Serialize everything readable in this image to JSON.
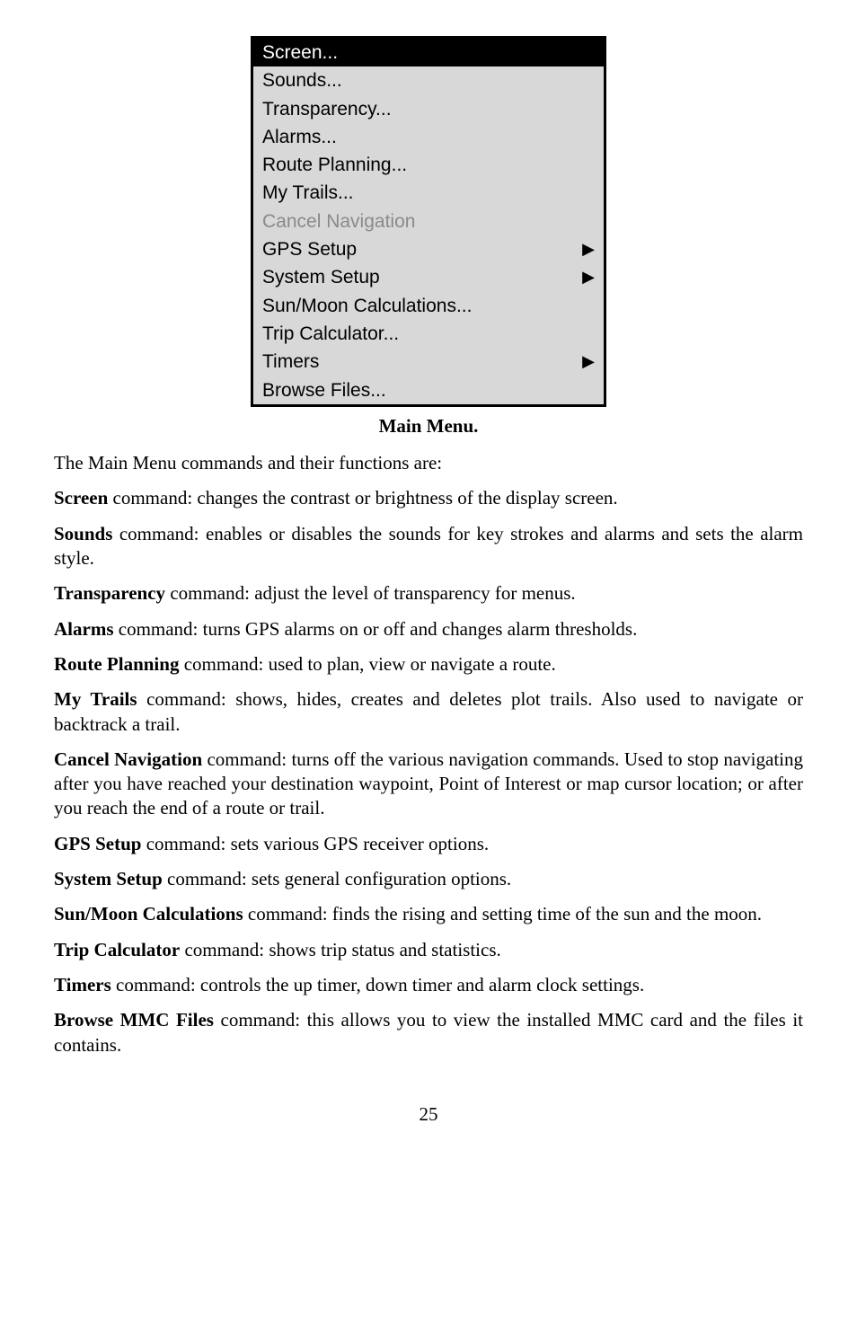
{
  "menu": {
    "box_background": "#d8d8d8",
    "border_color": "#000000",
    "font_family": "Arial, Helvetica, sans-serif",
    "font_size_pt": 16,
    "items": [
      {
        "label": "Screen...",
        "selected": true,
        "disabled": false,
        "has_submenu": false
      },
      {
        "label": "Sounds...",
        "selected": false,
        "disabled": false,
        "has_submenu": false
      },
      {
        "label": "Transparency...",
        "selected": false,
        "disabled": false,
        "has_submenu": false
      },
      {
        "label": "Alarms...",
        "selected": false,
        "disabled": false,
        "has_submenu": false
      },
      {
        "label": "Route Planning...",
        "selected": false,
        "disabled": false,
        "has_submenu": false
      },
      {
        "label": "My Trails...",
        "selected": false,
        "disabled": false,
        "has_submenu": false
      },
      {
        "label": "Cancel Navigation",
        "selected": false,
        "disabled": true,
        "has_submenu": false
      },
      {
        "label": "GPS Setup",
        "selected": false,
        "disabled": false,
        "has_submenu": true
      },
      {
        "label": "System Setup",
        "selected": false,
        "disabled": false,
        "has_submenu": true
      },
      {
        "label": "Sun/Moon Calculations...",
        "selected": false,
        "disabled": false,
        "has_submenu": false
      },
      {
        "label": "Trip Calculator...",
        "selected": false,
        "disabled": false,
        "has_submenu": false
      },
      {
        "label": "Timers",
        "selected": false,
        "disabled": false,
        "has_submenu": true
      },
      {
        "label": "Browse Files...",
        "selected": false,
        "disabled": false,
        "has_submenu": false
      }
    ],
    "submenu_arrow": "▶"
  },
  "caption": "Main Menu.",
  "intro": "The Main Menu commands and their functions are:",
  "commands": [
    {
      "name": "Screen",
      "desc": " command: changes the contrast or brightness of the display screen."
    },
    {
      "name": "Sounds",
      "desc": " command: enables or disables the sounds for key strokes and alarms and sets the alarm style."
    },
    {
      "name": "Transparency",
      "desc": " command: adjust the level of transparency for menus."
    },
    {
      "name": "Alarms",
      "desc": " command: turns GPS alarms on or off and changes alarm thresholds."
    },
    {
      "name": "Route Planning",
      "desc": " command: used to plan, view or navigate a route."
    },
    {
      "name": "My Trails",
      "desc": " command: shows, hides, creates and deletes plot trails. Also used to navigate or backtrack a trail."
    },
    {
      "name": "Cancel Navigation",
      "desc": " command: turns off the various navigation commands. Used to stop navigating after you have reached your destination waypoint, Point of Interest or map cursor location; or after you reach the end of a route or trail."
    },
    {
      "name": "GPS Setup",
      "desc": " command: sets various GPS receiver options."
    },
    {
      "name": "System Setup",
      "desc": " command: sets general configuration options."
    },
    {
      "name": "Sun/Moon Calculations",
      "desc": " command: finds the rising and setting time of the sun and the moon."
    },
    {
      "name": "Trip Calculator",
      "desc": " command: shows trip status and statistics."
    },
    {
      "name": "Timers",
      "desc": " command: controls the up timer, down timer and alarm clock settings."
    },
    {
      "name": "Browse MMC Files",
      "desc": " command: this allows you to view the installed MMC card and the files it contains."
    }
  ],
  "page_number": "25",
  "colors": {
    "page_background": "#ffffff",
    "body_text": "#000000",
    "menu_selected_bg": "#000000",
    "menu_selected_text": "#ffffff",
    "menu_disabled_text": "#8a8a8a"
  },
  "typography": {
    "body_font": "Century Schoolbook, Georgia, serif",
    "body_size_pt": 16,
    "caption_weight": "bold"
  }
}
